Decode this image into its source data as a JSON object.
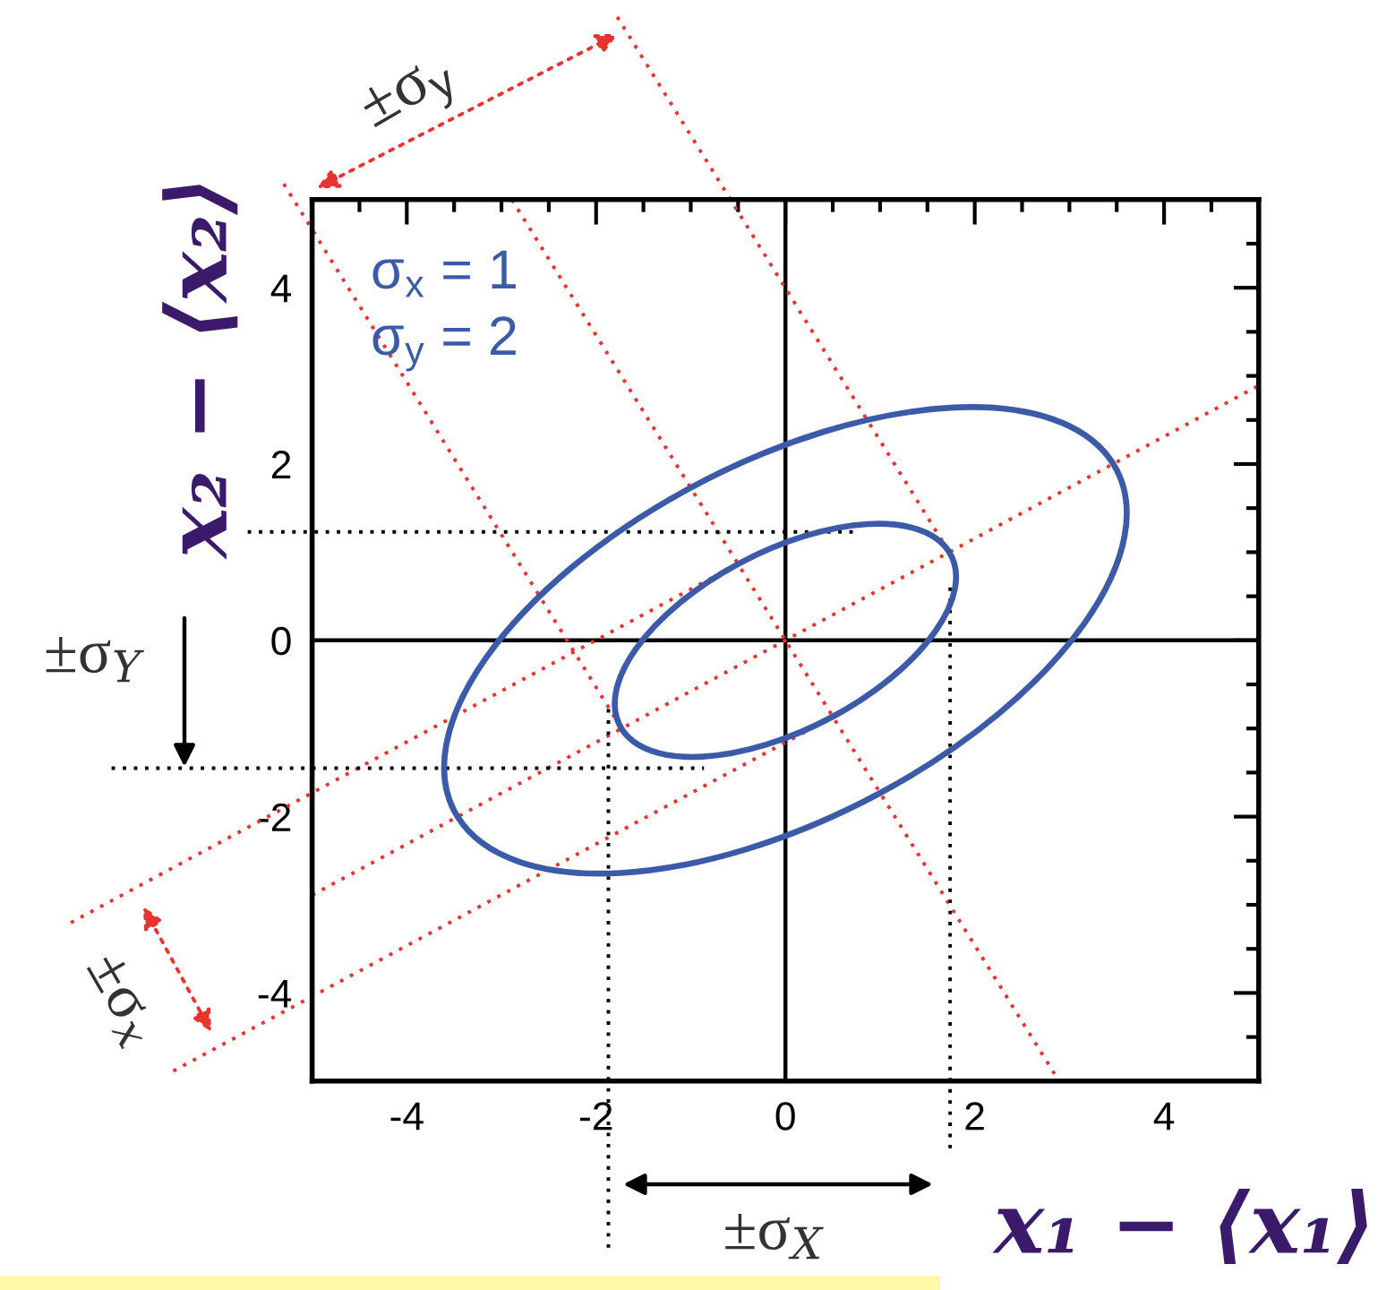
{
  "chart_data": {
    "type": "line",
    "xlabel": "x₁ − ⟨x₁⟩",
    "ylabel": "x₂ − ⟨x₂⟩",
    "annotations": [
      "σ$_{x}$ = 1",
      "σ$_{y}$ = 2",
      "±σ$_{y}$",
      "±σ$_{Y}$",
      "±σ$_{X}$",
      "±σ$_{x}$"
    ],
    "xlim": [
      -5,
      5
    ],
    "ylim": [
      -5,
      5
    ],
    "xticks": [
      {
        "value": -4.5,
        "label": null
      },
      -4,
      {
        "value": -3.5,
        "label": null
      },
      {
        "value": -3,
        "label": null
      },
      {
        "value": -2.5,
        "label": null
      },
      -2,
      {
        "value": -1.5,
        "label": null
      },
      {
        "value": -1,
        "label": null
      },
      {
        "value": -0.5,
        "label": null
      },
      0,
      {
        "value": 0.5,
        "label": null
      },
      {
        "value": 1,
        "label": null
      },
      {
        "value": 1.5,
        "label": null
      },
      2,
      {
        "value": 2.5,
        "label": null
      },
      {
        "value": 3,
        "label": null
      },
      {
        "value": 3.5,
        "label": null
      },
      4,
      {
        "value": 4.5,
        "label": null
      }
    ],
    "yticks": [
      {
        "value": -4.5,
        "label": null
      },
      -4,
      {
        "value": -3.5,
        "label": null
      },
      {
        "value": -3,
        "label": null
      },
      {
        "value": -2.5,
        "label": null
      },
      -2,
      {
        "value": -1.5,
        "label": null
      },
      {
        "value": -1,
        "label": null
      },
      {
        "value": -0.5,
        "label": null
      },
      0,
      {
        "value": 0.5,
        "label": null
      },
      {
        "value": 1,
        "label": null
      },
      {
        "value": 1.5,
        "label": null
      },
      2,
      {
        "value": 2.5,
        "label": null
      },
      {
        "value": 3,
        "label": null
      },
      {
        "value": 3.5,
        "label": null
      },
      4,
      {
        "value": 4.5,
        "label": null
      }
    ],
    "series": [
      {
        "color": "#000000",
        "line_style": "solid",
        "x": [
          0,
          0
        ],
        "values": [
          -5,
          5
        ]
      },
      {
        "color": "#000000",
        "line_style": "solid",
        "x": [
          -5,
          5
        ],
        "values": [
          0,
          0
        ]
      },
      {
        "color": "#e8332f",
        "line_style": "dotted",
        "x": [
          -5,
          5
        ],
        "values": [
          -2.89,
          2.89
        ]
      },
      {
        "color": "#e8332f",
        "line_style": "dotted",
        "x": [
          -5,
          -0.5
        ],
        "values": [
          -1.73,
          0.87
        ]
      },
      {
        "color": "#e8332f",
        "line_style": "dotted",
        "x": [
          -5,
          0.5
        ],
        "values": [
          -4.04,
          -0.87
        ]
      },
      {
        "color": "#e8332f",
        "line_style": "dotted",
        "x": [
          -2.89,
          2.89
        ],
        "values": [
          5,
          -5
        ]
      },
      {
        "color": "#e8332f",
        "line_style": "dotted",
        "x": [
          -0.58,
          1.73
        ],
        "values": [
          5,
          1.0
        ]
      },
      {
        "color": "#e8332f",
        "line_style": "dotted",
        "x": [
          -5,
          -1.73
        ],
        "values": [
          4.66,
          -1.0
        ]
      },
      {
        "color": "#000000",
        "line_style": "dotted",
        "x": [
          -1.87,
          -1.87
        ],
        "values": [
          -0.78,
          -5
        ]
      },
      {
        "color": "#000000",
        "line_style": "dotted",
        "x": [
          1.74,
          1.74
        ],
        "values": [
          0.6,
          -5
        ]
      },
      {
        "color": "#000000",
        "line_style": "dotted",
        "x": [
          -5,
          0.72
        ],
        "values": [
          1.23,
          1.23
        ]
      },
      {
        "color": "#000000",
        "line_style": "dotted",
        "x": [
          -5,
          -0.86
        ],
        "values": [
          -1.45,
          -1.45
        ]
      }
    ]
  }
}
